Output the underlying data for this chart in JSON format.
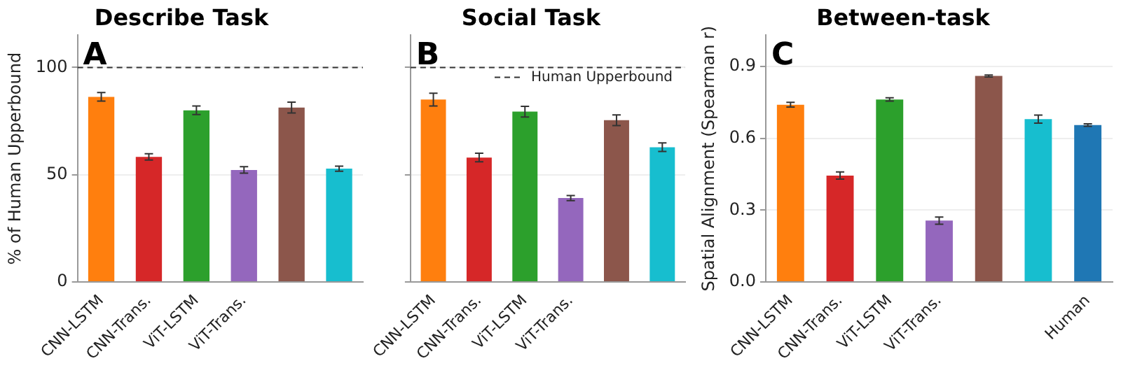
{
  "chart_data": [
    {
      "type": "bar",
      "title": "Describe Task",
      "ylabel": "% of Human Upperbound",
      "annotations": [
        "A"
      ],
      "categories": [
        "CNN-LSTM",
        "CNN-Trans.",
        "ViT-LSTM",
        "ViT-Trans.",
        null,
        null
      ],
      "values": [
        86.3,
        58.3,
        80,
        52.2,
        81.3,
        52.8
      ],
      "errors": [
        2,
        1.5,
        2,
        1.5,
        2.5,
        1.2
      ],
      "colors": [
        "#ff7f0e",
        "#d62728",
        "#2ca02c",
        "#9467bd",
        "#8c564b",
        "#17becf"
      ],
      "ylim": [
        0,
        115
      ],
      "yticks": [
        0,
        50,
        100
      ],
      "grid": "y",
      "ref_lines": [
        {
          "axis": "y",
          "value": 100,
          "color": "#333333",
          "line_style": "dashed"
        }
      ]
    },
    {
      "type": "bar",
      "title": "Social Task",
      "annotations": [
        "B"
      ],
      "categories": [
        "CNN-LSTM",
        "CNN-Trans.",
        "ViT-LSTM",
        "ViT-Trans.",
        null,
        null
      ],
      "values": [
        85,
        58,
        79.4,
        39.1,
        75.4,
        62.8
      ],
      "errors": [
        3,
        2,
        2.5,
        1.2,
        2.5,
        2
      ],
      "colors": [
        "#ff7f0e",
        "#d62728",
        "#2ca02c",
        "#9467bd",
        "#8c564b",
        "#17becf"
      ],
      "ylim": [
        0,
        115
      ],
      "yticks": [
        0,
        50,
        100
      ],
      "tick_labels": "x",
      "grid": "y",
      "legend": "top right",
      "ref_lines": [
        {
          "axis": "y",
          "value": 100,
          "label": "Human Upperbound",
          "color": "#333333",
          "line_style": "dashed"
        }
      ]
    },
    {
      "type": "bar",
      "title": "Between-task",
      "ylabel": "Spatial Alignment (Spearman r)",
      "annotations": [
        "C"
      ],
      "categories": [
        "CNN-LSTM",
        "CNN-Trans.",
        "ViT-LSTM",
        "ViT-Trans.",
        null,
        null,
        "Human"
      ],
      "values": [
        0.74,
        0.444,
        0.762,
        0.256,
        0.86,
        0.68,
        0.655
      ],
      "errors": [
        0.01,
        0.015,
        0.007,
        0.015,
        0.004,
        0.017,
        0.005
      ],
      "colors": [
        "#ff7f0e",
        "#d62728",
        "#2ca02c",
        "#9467bd",
        "#8c564b",
        "#17becf",
        "#1f77b4"
      ],
      "ylim": [
        0,
        1.03
      ],
      "yticks": [
        {
          "value": 0,
          "label": "0.0"
        },
        {
          "value": 0.3,
          "label": "0.3"
        },
        {
          "value": 0.6,
          "label": "0.6"
        },
        {
          "value": 0.9,
          "label": "0.9"
        }
      ],
      "grid": "y"
    }
  ]
}
